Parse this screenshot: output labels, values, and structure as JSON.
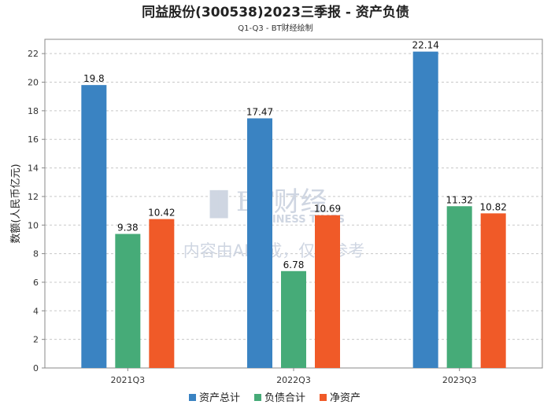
{
  "chart_data": {
    "type": "bar",
    "title": "同益股份(300538)2023三季报 - 资产负债",
    "subtitle": "Q1-Q3 - BT财经绘制",
    "ylabel": "数额(人民币亿元)",
    "xlabel": "",
    "categories": [
      "2021Q3",
      "2022Q3",
      "2023Q3"
    ],
    "ylim": [
      0,
      23
    ],
    "yticks": [
      0,
      2,
      4,
      6,
      8,
      10,
      12,
      14,
      16,
      18,
      20,
      22
    ],
    "grid": true,
    "legend_position": "bottom",
    "series": [
      {
        "name": "资产总计",
        "values": [
          19.8,
          17.47,
          22.14
        ],
        "color": "#3a83c2"
      },
      {
        "name": "负债合计",
        "values": [
          9.38,
          6.78,
          11.32
        ],
        "color": "#46ab78"
      },
      {
        "name": "净资产",
        "values": [
          10.42,
          10.69,
          10.82
        ],
        "color": "#f05a28"
      }
    ]
  },
  "watermark": {
    "logo_text": "BT财经",
    "logo_sub": "BUSINESS TIMES",
    "notice": "内容由AI生成，仅供参考"
  }
}
